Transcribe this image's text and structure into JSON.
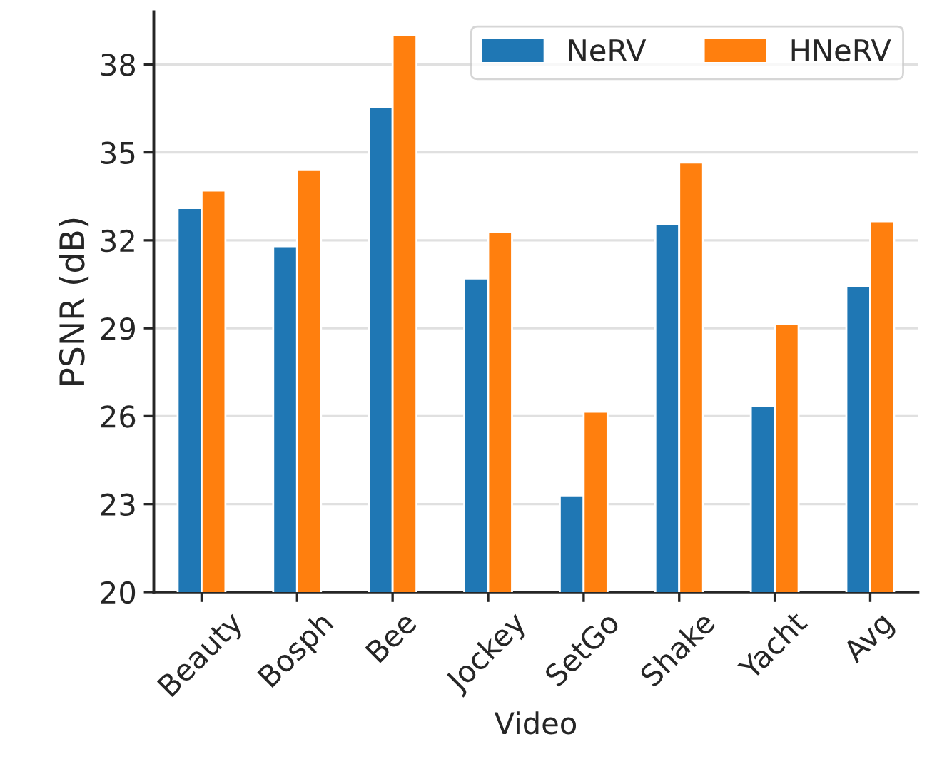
{
  "chart_data": {
    "type": "bar",
    "xlabel": "Video",
    "ylabel": "PSNR (dB)",
    "categories": [
      "Beauty",
      "Bosph",
      "Bee",
      "Jockey",
      "SetGo",
      "Shake",
      "Yacht",
      "Avg"
    ],
    "series": [
      {
        "name": "NeRV",
        "color": "#1f77b4",
        "values": [
          33.1,
          31.8,
          36.55,
          30.7,
          23.3,
          32.55,
          26.35,
          30.45
        ]
      },
      {
        "name": "HNeRV",
        "color": "#ff7f0e",
        "values": [
          33.7,
          34.4,
          39.0,
          32.3,
          26.15,
          34.65,
          29.15,
          32.65
        ]
      }
    ],
    "ylim": [
      20,
      39.8
    ],
    "yticks": [
      20,
      23,
      26,
      29,
      32,
      35,
      38
    ],
    "grid": "y",
    "legend": "top right"
  }
}
